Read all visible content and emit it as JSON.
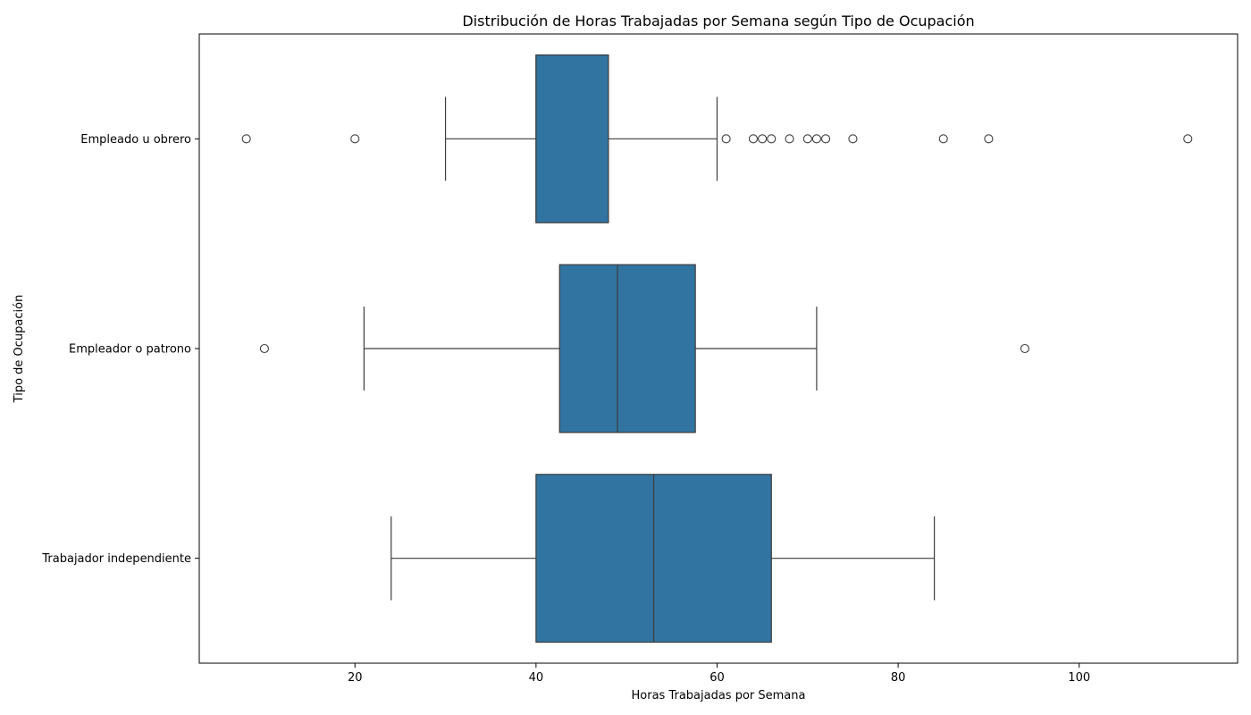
{
  "chart_data": {
    "type": "boxplot",
    "orientation": "horizontal",
    "title": "Distribución de Horas Trabajadas por Semana según Tipo de Ocupación",
    "xlabel": "Horas Trabajadas por Semana",
    "ylabel": "Tipo de Ocupación",
    "xlim": [
      2.8,
      117.5
    ],
    "xticks": [
      20,
      40,
      60,
      80,
      100
    ],
    "grid": false,
    "box_color": "#3274a1",
    "line_color": "#3d3d3d",
    "categories": [
      "Empleado u obrero",
      "Empleador o patrono",
      "Trabajador independiente"
    ],
    "boxes": [
      {
        "category": "Empleado u obrero",
        "whisker_low": 30,
        "q1": 40,
        "median": 40,
        "q3": 48,
        "whisker_high": 60,
        "outliers": [
          8,
          20,
          61,
          64,
          65,
          66,
          68,
          70,
          71,
          72,
          75,
          85,
          90,
          112
        ]
      },
      {
        "category": "Empleador o patrono",
        "whisker_low": 21,
        "q1": 42.6,
        "median": 49,
        "q3": 57.6,
        "whisker_high": 71,
        "outliers": [
          10,
          94
        ]
      },
      {
        "category": "Trabajador independiente",
        "whisker_low": 24,
        "q1": 40,
        "median": 53,
        "q3": 66,
        "whisker_high": 84,
        "outliers": []
      }
    ]
  }
}
